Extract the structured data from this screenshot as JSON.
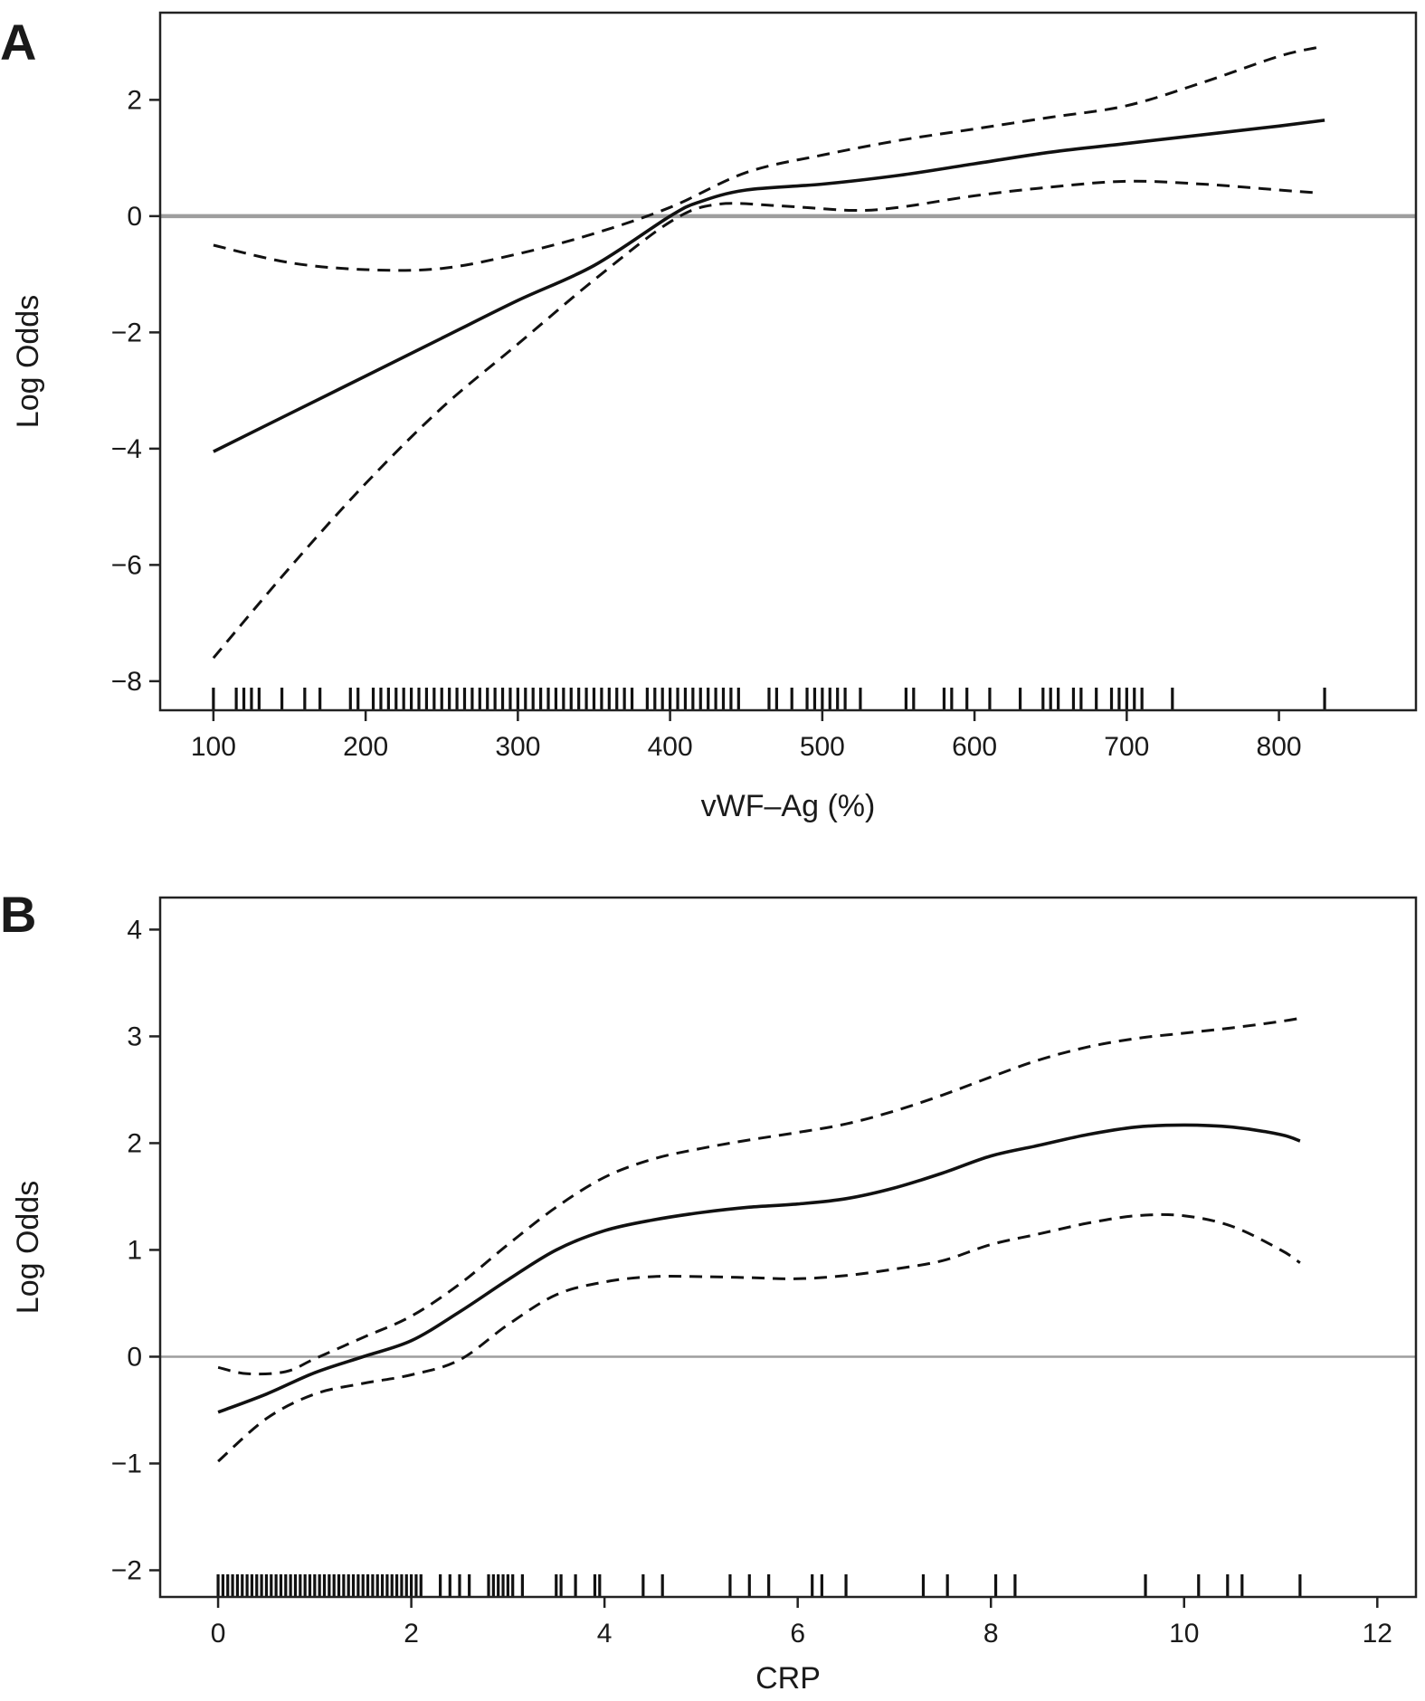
{
  "chart_data": [
    {
      "type": "line",
      "panel": "A",
      "xlabel": "vWF–Ag (%)",
      "ylabel": "Log Odds",
      "xlim": [
        65,
        890
      ],
      "ylim": [
        -8.5,
        3.5
      ],
      "xticks": [
        100,
        200,
        300,
        400,
        500,
        600,
        700,
        800
      ],
      "yticks": [
        -8,
        -6,
        -4,
        -2,
        0,
        2
      ],
      "reference_line": 0,
      "series": [
        {
          "role": "fit",
          "style": "solid",
          "x": [
            100,
            150,
            200,
            250,
            300,
            350,
            400,
            420,
            450,
            500,
            550,
            600,
            650,
            700,
            750,
            800,
            830
          ],
          "y": [
            -4.05,
            -3.4,
            -2.75,
            -2.1,
            -1.45,
            -0.85,
            0.0,
            0.25,
            0.45,
            0.55,
            0.7,
            0.9,
            1.1,
            1.25,
            1.4,
            1.55,
            1.65
          ]
        },
        {
          "role": "upper",
          "style": "dashed",
          "x": [
            100,
            150,
            200,
            250,
            300,
            350,
            400,
            450,
            500,
            550,
            600,
            650,
            700,
            750,
            800,
            825
          ],
          "y": [
            -0.5,
            -0.8,
            -0.92,
            -0.9,
            -0.65,
            -0.3,
            0.15,
            0.75,
            1.05,
            1.3,
            1.5,
            1.7,
            1.9,
            2.3,
            2.75,
            2.9
          ]
        },
        {
          "role": "lower",
          "style": "dashed",
          "x": [
            100,
            150,
            200,
            250,
            300,
            350,
            400,
            430,
            470,
            520,
            550,
            600,
            650,
            700,
            750,
            800,
            825
          ],
          "y": [
            -7.6,
            -6.05,
            -4.6,
            -3.3,
            -2.2,
            -1.1,
            -0.1,
            0.2,
            0.18,
            0.1,
            0.15,
            0.35,
            0.5,
            0.6,
            0.55,
            0.45,
            0.4
          ]
        }
      ],
      "rug": [
        100,
        115,
        120,
        125,
        130,
        145,
        160,
        170,
        190,
        195,
        205,
        210,
        215,
        220,
        225,
        230,
        235,
        240,
        245,
        250,
        255,
        260,
        265,
        270,
        275,
        280,
        285,
        290,
        295,
        300,
        305,
        310,
        315,
        320,
        325,
        330,
        335,
        340,
        345,
        350,
        355,
        360,
        365,
        370,
        375,
        385,
        390,
        395,
        400,
        405,
        410,
        415,
        420,
        425,
        430,
        435,
        440,
        445,
        465,
        470,
        480,
        490,
        495,
        500,
        505,
        510,
        515,
        525,
        555,
        560,
        580,
        585,
        595,
        610,
        630,
        645,
        650,
        655,
        665,
        670,
        680,
        690,
        695,
        700,
        705,
        710,
        730,
        830
      ]
    },
    {
      "type": "line",
      "panel": "B",
      "xlabel": "CRP",
      "ylabel": "Log Odds",
      "xlim": [
        -0.6,
        12.4
      ],
      "ylim": [
        -2.25,
        4.3
      ],
      "xticks": [
        0,
        2,
        4,
        6,
        8,
        10,
        12
      ],
      "yticks": [
        -2,
        -1,
        0,
        1,
        2,
        3,
        4
      ],
      "reference_line": 0,
      "series": [
        {
          "role": "fit",
          "style": "solid",
          "x": [
            0,
            0.5,
            1,
            1.5,
            2,
            2.5,
            3,
            3.5,
            4,
            4.5,
            5,
            5.5,
            6,
            6.5,
            7,
            7.5,
            8,
            8.5,
            9,
            9.5,
            10,
            10.5,
            11,
            11.2
          ],
          "y": [
            -0.52,
            -0.35,
            -0.15,
            0.0,
            0.15,
            0.42,
            0.72,
            1.0,
            1.18,
            1.28,
            1.35,
            1.4,
            1.43,
            1.48,
            1.58,
            1.72,
            1.88,
            1.98,
            2.08,
            2.15,
            2.17,
            2.15,
            2.08,
            2.02
          ]
        },
        {
          "role": "upper",
          "style": "dashed",
          "x": [
            0,
            0.3,
            0.7,
            1,
            1.5,
            2,
            2.5,
            3,
            3.5,
            4,
            4.5,
            5,
            5.5,
            6,
            6.5,
            7,
            7.5,
            8,
            8.5,
            9,
            9.5,
            10,
            10.5,
            11,
            11.2
          ],
          "y": [
            -0.1,
            -0.16,
            -0.14,
            -0.02,
            0.18,
            0.38,
            0.68,
            1.05,
            1.4,
            1.68,
            1.85,
            1.95,
            2.03,
            2.1,
            2.18,
            2.3,
            2.45,
            2.62,
            2.78,
            2.9,
            2.98,
            3.03,
            3.08,
            3.14,
            3.17
          ]
        },
        {
          "role": "lower",
          "style": "dashed",
          "x": [
            0,
            0.5,
            1,
            1.5,
            2,
            2.5,
            3,
            3.5,
            4,
            4.5,
            5,
            5.5,
            6,
            6.5,
            7,
            7.5,
            8,
            8.5,
            9,
            9.5,
            10,
            10.5,
            11,
            11.2
          ],
          "y": [
            -0.98,
            -0.58,
            -0.35,
            -0.25,
            -0.17,
            -0.03,
            0.3,
            0.58,
            0.7,
            0.75,
            0.75,
            0.74,
            0.73,
            0.76,
            0.82,
            0.9,
            1.05,
            1.15,
            1.25,
            1.32,
            1.32,
            1.22,
            1.0,
            0.88
          ]
        }
      ],
      "rug": [
        0,
        0.05,
        0.1,
        0.15,
        0.2,
        0.25,
        0.3,
        0.35,
        0.4,
        0.45,
        0.5,
        0.55,
        0.6,
        0.65,
        0.7,
        0.75,
        0.8,
        0.85,
        0.9,
        0.95,
        1.0,
        1.05,
        1.1,
        1.15,
        1.2,
        1.25,
        1.3,
        1.35,
        1.4,
        1.45,
        1.5,
        1.55,
        1.6,
        1.65,
        1.7,
        1.75,
        1.8,
        1.85,
        1.9,
        1.95,
        2.0,
        2.05,
        2.1,
        2.3,
        2.4,
        2.5,
        2.6,
        2.8,
        2.85,
        2.9,
        2.95,
        3.0,
        3.05,
        3.15,
        3.5,
        3.55,
        3.7,
        3.9,
        3.95,
        4.4,
        4.6,
        5.3,
        5.5,
        5.7,
        6.15,
        6.25,
        6.5,
        7.3,
        7.55,
        8.05,
        8.25,
        9.6,
        10.15,
        10.45,
        10.6,
        11.2
      ]
    }
  ],
  "panels": {
    "a": {
      "label": "A"
    },
    "b": {
      "label": "B"
    }
  }
}
